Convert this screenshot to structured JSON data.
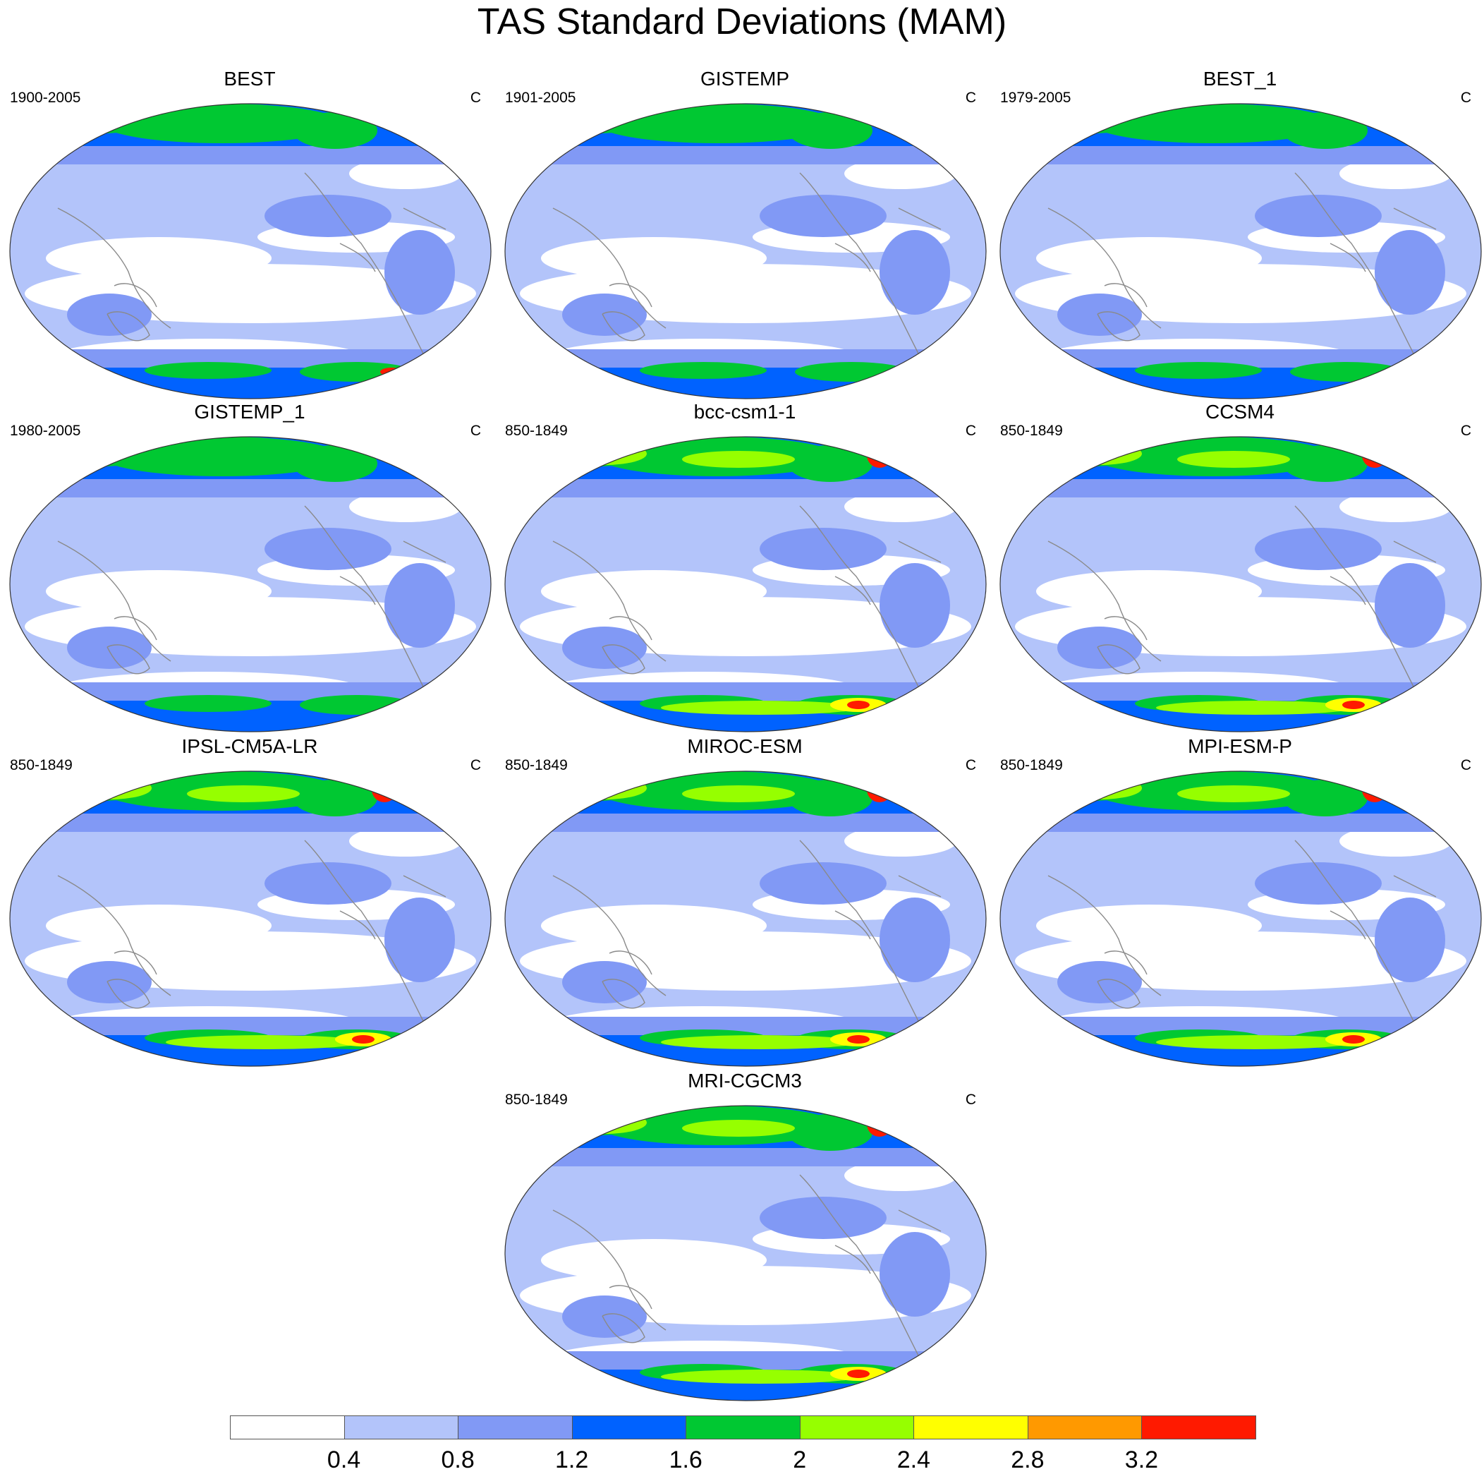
{
  "title": "TAS Standard Deviations (MAM)",
  "colors": {
    "levels": [
      "#ffffff",
      "#b3c4fa",
      "#8199f5",
      "#0062ff",
      "#00c832",
      "#96ff00",
      "#ffff00",
      "#ff9900",
      "#ff1a00"
    ],
    "coast": "#8a8a8a",
    "outline": "#333333"
  },
  "panels": [
    {
      "name": "BEST",
      "period": "1900-2005",
      "unit": "C"
    },
    {
      "name": "GISTEMP",
      "period": "1901-2005",
      "unit": "C"
    },
    {
      "name": "BEST_1",
      "period": "1979-2005",
      "unit": "C"
    },
    {
      "name": "GISTEMP_1",
      "period": "1980-2005",
      "unit": "C"
    },
    {
      "name": "bcc-csm1-1",
      "period": "850-1849",
      "unit": "C"
    },
    {
      "name": "CCSM4",
      "period": "850-1849",
      "unit": "C"
    },
    {
      "name": "IPSL-CM5A-LR",
      "period": "850-1849",
      "unit": "C"
    },
    {
      "name": "MIROC-ESM",
      "period": "850-1849",
      "unit": "C"
    },
    {
      "name": "MPI-ESM-P",
      "period": "850-1849",
      "unit": "C"
    },
    {
      "name": "MRI-CGCM3",
      "period": "850-1849",
      "unit": "C"
    }
  ],
  "colorbar": {
    "labels": [
      "0.4",
      "0.8",
      "1.2",
      "1.6",
      "2",
      "2.4",
      "2.8",
      "3.2"
    ]
  }
}
